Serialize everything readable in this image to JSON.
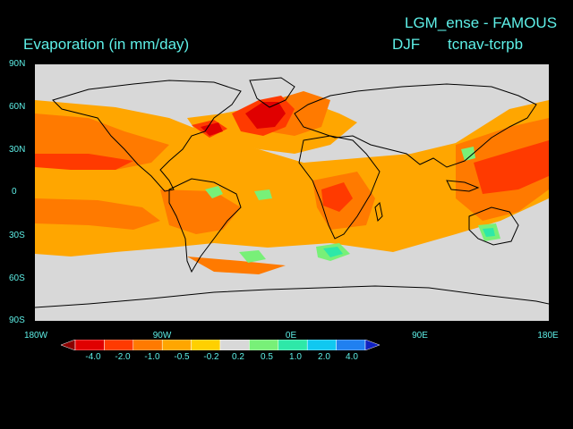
{
  "title": {
    "experiment": "LGM_ense - FAMOUS",
    "variable": "Evaporation (in mm/day)",
    "season": "DJF",
    "difference": "tcnav-tcrpb"
  },
  "axes": {
    "lat_ticks": [
      "90N",
      "60N",
      "30N",
      "0",
      "30S",
      "60S",
      "90S"
    ],
    "lon_ticks": [
      "180W",
      "90W",
      "0E",
      "90E",
      "180E"
    ]
  },
  "colorbar": {
    "labels": [
      "-4.0",
      "-2.0",
      "-1.0",
      "-0.5",
      "-0.2",
      "0.2",
      "0.5",
      "1.0",
      "2.0",
      "4.0"
    ],
    "colors": [
      "#8b0000",
      "#e00000",
      "#ff3a00",
      "#ff7a00",
      "#ffa600",
      "#ffd000",
      "#d8d8d8",
      "#78f078",
      "#2ee8a8",
      "#10c8f0",
      "#2080f0",
      "#1020c0"
    ]
  },
  "map_colors": {
    "ocean": "#d8d8d8",
    "coast": "#000000",
    "background": "#000000"
  }
}
